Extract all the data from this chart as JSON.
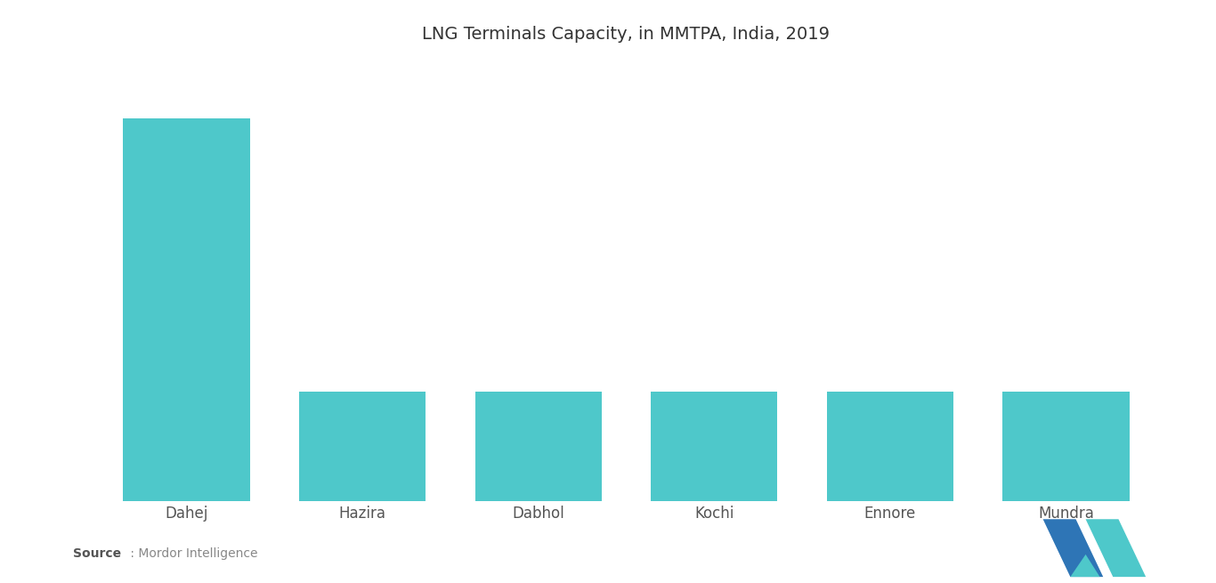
{
  "title": "LNG Terminals Capacity, in MMTPA, India, 2019",
  "categories": [
    "Dahej",
    "Hazira",
    "Dabhol",
    "Kochi",
    "Ennore",
    "Mundra"
  ],
  "values": [
    17.5,
    5.0,
    5.0,
    5.0,
    5.0,
    5.0
  ],
  "bar_color": "#4EC8CA",
  "background_color": "#FFFFFF",
  "title_fontsize": 14,
  "tick_fontsize": 12,
  "ylim": [
    0,
    20
  ],
  "bar_width": 0.72,
  "logo_teal": "#4EC8CA",
  "logo_blue": "#2E75B6",
  "logo_dark_blue": "#1F4E79"
}
